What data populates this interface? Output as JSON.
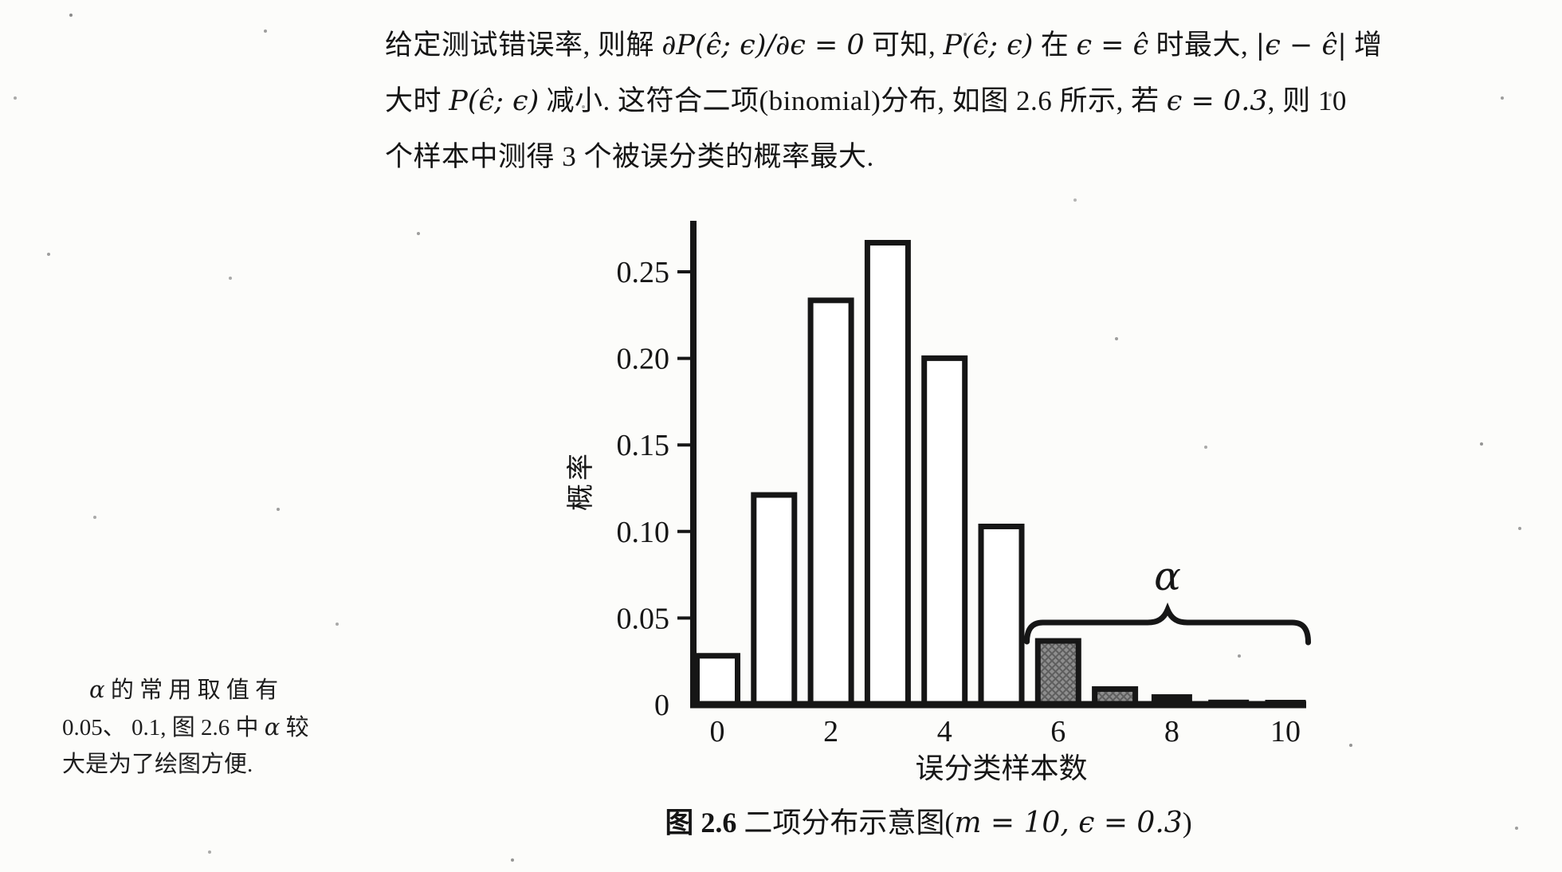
{
  "page": {
    "background": "#fcfcfa",
    "ink": "#161616"
  },
  "paragraph": {
    "lines": [
      {
        "runs": [
          {
            "t": "给定测试错误率, 则解 "
          },
          {
            "t": "∂P(ϵ̂; ϵ)/∂ϵ = 0",
            "math": true
          },
          {
            "t": " 可知, "
          },
          {
            "t": "P(ϵ̂; ϵ)",
            "math": true
          },
          {
            "t": " 在 "
          },
          {
            "t": "ϵ = ϵ̂",
            "math": true
          },
          {
            "t": " 时最大, "
          },
          {
            "t": "|ϵ − ϵ̂|",
            "math": true
          },
          {
            "t": " 增"
          }
        ]
      },
      {
        "runs": [
          {
            "t": "大时 "
          },
          {
            "t": "P(ϵ̂; ϵ)",
            "math": true
          },
          {
            "t": " 减小. 这符合二项(binomial)分布, 如图 2.6 所示, 若 "
          },
          {
            "t": "ϵ = 0.3",
            "math": true
          },
          {
            "t": ", 则 10"
          }
        ]
      },
      {
        "runs": [
          {
            "t": "个样本中测得 3 个被误分类的概率最大."
          }
        ]
      }
    ]
  },
  "margin_note": {
    "lines": [
      {
        "indent": true,
        "runs": [
          {
            "t": "α",
            "math": true
          },
          {
            "t": " 的 常 用 取 值 有"
          }
        ]
      },
      {
        "runs": [
          {
            "t": "0.05、 0.1, 图 2.6 中 "
          },
          {
            "t": "α",
            "math": true
          },
          {
            "t": " 较"
          }
        ]
      },
      {
        "runs": [
          {
            "t": "大是为了绘图方便."
          }
        ]
      }
    ]
  },
  "figure": {
    "caption_runs": [
      {
        "t": "图 2.6",
        "bold": true
      },
      {
        "t": "  二项分布示意图("
      },
      {
        "t": "m = 10, ϵ = 0.3",
        "math": true
      },
      {
        "t": ")"
      }
    ]
  },
  "chart_data": {
    "type": "bar",
    "title": "二项分布示意图 (m=10, ϵ=0.3)",
    "xlabel": "误分类样本数",
    "ylabel": "概率",
    "x": [
      0,
      1,
      2,
      3,
      4,
      5,
      6,
      7,
      8,
      9,
      10
    ],
    "values": [
      0.0282,
      0.1211,
      0.2335,
      0.2668,
      0.2001,
      0.1029,
      0.0368,
      0.009,
      0.0014,
      0.0001,
      6e-06
    ],
    "bar_styles": [
      "white",
      "white",
      "white",
      "white",
      "white",
      "white",
      "shaded",
      "shaded",
      "black",
      "black",
      "black"
    ],
    "yticks": [
      0,
      0.05,
      0.1,
      0.15,
      0.2,
      0.25
    ],
    "ytick_labels": [
      "0",
      "0.05",
      "0.10",
      "0.15",
      "0.20",
      "0.25"
    ],
    "xticks": [
      0,
      2,
      4,
      6,
      8,
      10
    ],
    "ylim": [
      0,
      0.28
    ],
    "grid": false,
    "legend": null,
    "annotation": {
      "label": "α",
      "brace_from": 5.45,
      "brace_to": 10.4,
      "note": "shaded tail bars 6–10 form the α region"
    },
    "shaded_fill": "#8e8e8e",
    "hatch_line": "#5e5e5e",
    "ink": "#161616"
  }
}
